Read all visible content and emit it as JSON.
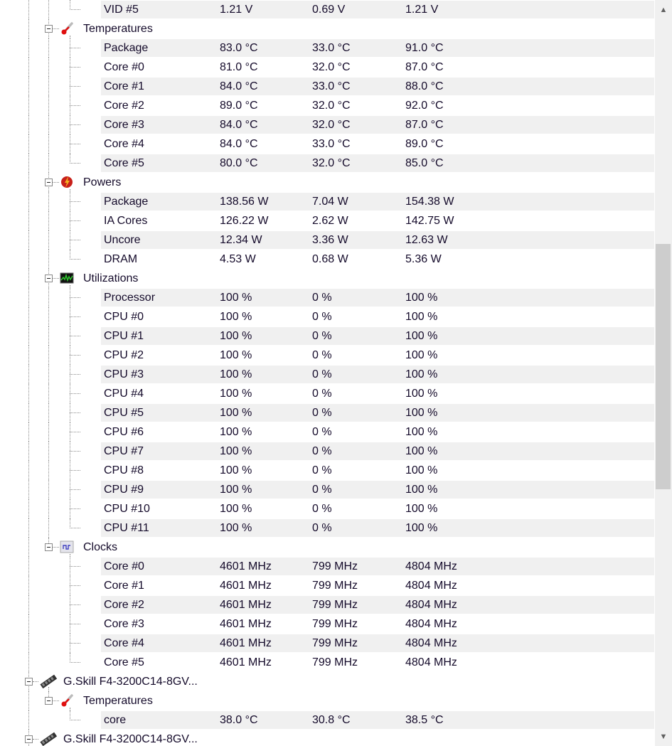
{
  "tree": [
    {
      "type": "continued_device",
      "categories": [
        {
          "type": "continued_category",
          "items": [
            {
              "label": "VID #5",
              "value": "1.21 V",
              "min": "0.69 V",
              "max": "1.21 V"
            }
          ]
        },
        {
          "label": "Temperatures",
          "icon": "thermometer-icon",
          "items": [
            {
              "label": "Package",
              "value": "83.0 °C",
              "min": "33.0 °C",
              "max": "91.0 °C"
            },
            {
              "label": "Core #0",
              "value": "81.0 °C",
              "min": "32.0 °C",
              "max": "87.0 °C"
            },
            {
              "label": "Core #1",
              "value": "84.0 °C",
              "min": "33.0 °C",
              "max": "88.0 °C"
            },
            {
              "label": "Core #2",
              "value": "89.0 °C",
              "min": "32.0 °C",
              "max": "92.0 °C"
            },
            {
              "label": "Core #3",
              "value": "84.0 °C",
              "min": "32.0 °C",
              "max": "87.0 °C"
            },
            {
              "label": "Core #4",
              "value": "84.0 °C",
              "min": "33.0 °C",
              "max": "89.0 °C"
            },
            {
              "label": "Core #5",
              "value": "80.0 °C",
              "min": "32.0 °C",
              "max": "85.0 °C"
            }
          ]
        },
        {
          "label": "Powers",
          "icon": "power-icon",
          "items": [
            {
              "label": "Package",
              "value": "138.56 W",
              "min": "7.04 W",
              "max": "154.38 W"
            },
            {
              "label": "IA Cores",
              "value": "126.22 W",
              "min": "2.62 W",
              "max": "142.75 W"
            },
            {
              "label": "Uncore",
              "value": "12.34 W",
              "min": "3.36 W",
              "max": "12.63 W"
            },
            {
              "label": "DRAM",
              "value": "4.53 W",
              "min": "0.68 W",
              "max": "5.36 W"
            }
          ]
        },
        {
          "label": "Utilizations",
          "icon": "utilization-icon",
          "items": [
            {
              "label": "Processor",
              "value": "100 %",
              "min": "0 %",
              "max": "100 %"
            },
            {
              "label": "CPU #0",
              "value": "100 %",
              "min": "0 %",
              "max": "100 %"
            },
            {
              "label": "CPU #1",
              "value": "100 %",
              "min": "0 %",
              "max": "100 %"
            },
            {
              "label": "CPU #2",
              "value": "100 %",
              "min": "0 %",
              "max": "100 %"
            },
            {
              "label": "CPU #3",
              "value": "100 %",
              "min": "0 %",
              "max": "100 %"
            },
            {
              "label": "CPU #4",
              "value": "100 %",
              "min": "0 %",
              "max": "100 %"
            },
            {
              "label": "CPU #5",
              "value": "100 %",
              "min": "0 %",
              "max": "100 %"
            },
            {
              "label": "CPU #6",
              "value": "100 %",
              "min": "0 %",
              "max": "100 %"
            },
            {
              "label": "CPU #7",
              "value": "100 %",
              "min": "0 %",
              "max": "100 %"
            },
            {
              "label": "CPU #8",
              "value": "100 %",
              "min": "0 %",
              "max": "100 %"
            },
            {
              "label": "CPU #9",
              "value": "100 %",
              "min": "0 %",
              "max": "100 %"
            },
            {
              "label": "CPU #10",
              "value": "100 %",
              "min": "0 %",
              "max": "100 %"
            },
            {
              "label": "CPU #11",
              "value": "100 %",
              "min": "0 %",
              "max": "100 %"
            }
          ]
        },
        {
          "label": "Clocks",
          "icon": "clock-icon",
          "items": [
            {
              "label": "Core #0",
              "value": "4601 MHz",
              "min": "799 MHz",
              "max": "4804 MHz"
            },
            {
              "label": "Core #1",
              "value": "4601 MHz",
              "min": "799 MHz",
              "max": "4804 MHz"
            },
            {
              "label": "Core #2",
              "value": "4601 MHz",
              "min": "799 MHz",
              "max": "4804 MHz"
            },
            {
              "label": "Core #3",
              "value": "4601 MHz",
              "min": "799 MHz",
              "max": "4804 MHz"
            },
            {
              "label": "Core #4",
              "value": "4601 MHz",
              "min": "799 MHz",
              "max": "4804 MHz"
            },
            {
              "label": "Core #5",
              "value": "4601 MHz",
              "min": "799 MHz",
              "max": "4804 MHz"
            }
          ]
        }
      ]
    },
    {
      "label": "G.Skill F4-3200C14-8GV...",
      "icon": "memory-module-icon",
      "categories": [
        {
          "label": "Temperatures",
          "icon": "thermometer-icon",
          "items": [
            {
              "label": "core",
              "value": "38.0 °C",
              "min": "30.8 °C",
              "max": "38.5 °C"
            }
          ]
        }
      ]
    },
    {
      "label": "G.Skill F4-3200C14-8GV...",
      "icon": "memory-module-icon",
      "categories": []
    }
  ],
  "colors": {
    "row_shade": "#f0f0f0",
    "scroll_thumb": "#cdcdcd",
    "scroll_track": "#f0f0f0"
  },
  "scrollbar": {
    "up_icon": "chevron-up-icon",
    "down_icon": "chevron-down-icon",
    "position_fraction": 0.33
  }
}
